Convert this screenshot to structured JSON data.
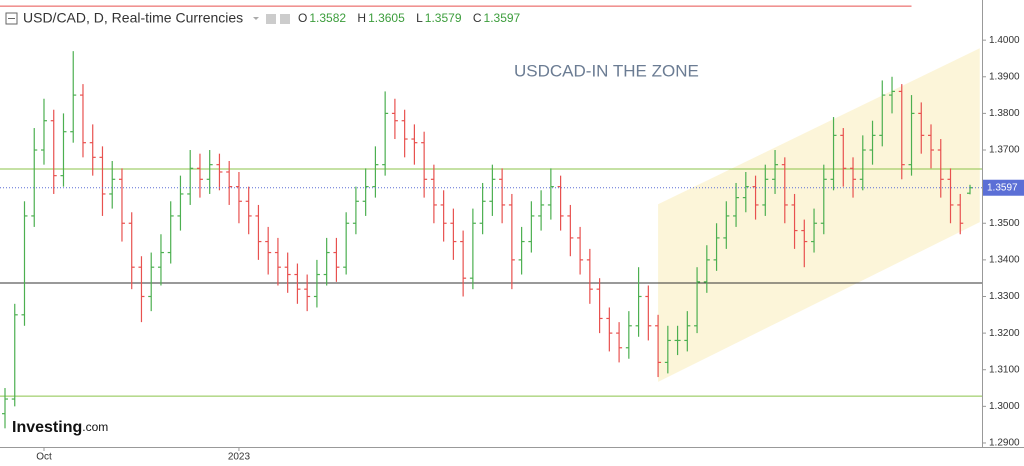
{
  "chart_data": {
    "type": "ohlc",
    "title": "USD/CAD, D, Real-time Currencies",
    "annotation": "USDCAD-IN THE ZONE",
    "ohlc_labels": [
      "O",
      "H",
      "L",
      "C"
    ],
    "logo": [
      "Investing",
      ".com"
    ],
    "open": [
      1.298,
      1.302,
      1.325,
      1.352,
      1.37,
      1.378,
      1.363,
      1.375,
      1.385,
      1.372,
      1.368,
      1.358,
      1.362,
      1.35,
      1.338,
      1.33,
      1.338,
      1.342,
      1.352,
      1.358,
      1.365,
      1.362,
      1.366,
      1.364,
      1.36,
      1.356,
      1.352,
      1.345,
      1.342,
      1.338,
      1.336,
      1.332,
      1.33,
      1.336,
      1.342,
      1.338,
      1.35,
      1.356,
      1.36,
      1.366,
      1.38,
      1.378,
      1.373,
      1.372,
      1.362,
      1.355,
      1.35,
      1.345,
      1.335,
      1.35,
      1.356,
      1.362,
      1.355,
      1.34,
      1.345,
      1.352,
      1.355,
      1.36,
      1.352,
      1.346,
      1.34,
      1.332,
      1.324,
      1.32,
      1.316,
      1.322,
      1.33,
      1.322,
      1.312,
      1.318,
      1.318,
      1.322,
      1.334,
      1.34,
      1.346,
      1.352,
      1.357,
      1.36,
      1.355,
      1.362,
      1.366,
      1.355,
      1.348,
      1.345,
      1.35,
      1.362,
      1.374,
      1.365,
      1.362,
      1.37,
      1.374,
      1.385,
      1.386,
      1.366,
      1.38,
      1.374,
      1.37,
      1.362,
      1.355,
      1.3582
    ],
    "high": [
      1.305,
      1.328,
      1.356,
      1.376,
      1.384,
      1.381,
      1.38,
      1.397,
      1.388,
      1.377,
      1.371,
      1.367,
      1.365,
      1.353,
      1.341,
      1.342,
      1.347,
      1.356,
      1.363,
      1.37,
      1.369,
      1.37,
      1.369,
      1.367,
      1.364,
      1.36,
      1.355,
      1.349,
      1.346,
      1.342,
      1.339,
      1.336,
      1.34,
      1.346,
      1.346,
      1.353,
      1.36,
      1.365,
      1.371,
      1.386,
      1.384,
      1.381,
      1.377,
      1.375,
      1.366,
      1.359,
      1.354,
      1.348,
      1.354,
      1.361,
      1.366,
      1.365,
      1.358,
      1.349,
      1.356,
      1.359,
      1.365,
      1.363,
      1.355,
      1.349,
      1.343,
      1.335,
      1.327,
      1.323,
      1.326,
      1.338,
      1.333,
      1.325,
      1.322,
      1.322,
      1.326,
      1.338,
      1.344,
      1.35,
      1.356,
      1.361,
      1.364,
      1.363,
      1.366,
      1.37,
      1.368,
      1.358,
      1.351,
      1.354,
      1.366,
      1.379,
      1.376,
      1.368,
      1.374,
      1.378,
      1.389,
      1.39,
      1.388,
      1.385,
      1.383,
      1.377,
      1.373,
      1.365,
      1.358,
      1.3605
    ],
    "low": [
      1.294,
      1.3,
      1.322,
      1.349,
      1.366,
      1.358,
      1.36,
      1.372,
      1.368,
      1.363,
      1.352,
      1.354,
      1.345,
      1.332,
      1.323,
      1.326,
      1.333,
      1.339,
      1.348,
      1.355,
      1.357,
      1.358,
      1.359,
      1.355,
      1.35,
      1.347,
      1.34,
      1.336,
      1.333,
      1.331,
      1.328,
      1.326,
      1.327,
      1.333,
      1.334,
      1.336,
      1.347,
      1.352,
      1.357,
      1.363,
      1.373,
      1.368,
      1.366,
      1.357,
      1.35,
      1.345,
      1.34,
      1.33,
      1.332,
      1.347,
      1.352,
      1.35,
      1.332,
      1.336,
      1.342,
      1.348,
      1.351,
      1.348,
      1.341,
      1.336,
      1.328,
      1.32,
      1.315,
      1.312,
      1.313,
      1.319,
      1.318,
      1.308,
      1.309,
      1.314,
      1.315,
      1.32,
      1.331,
      1.337,
      1.343,
      1.349,
      1.353,
      1.351,
      1.352,
      1.358,
      1.35,
      1.343,
      1.338,
      1.342,
      1.347,
      1.359,
      1.36,
      1.357,
      1.359,
      1.366,
      1.371,
      1.38,
      1.362,
      1.363,
      1.369,
      1.365,
      1.357,
      1.35,
      1.347,
      1.3579
    ],
    "close": [
      1.302,
      1.325,
      1.352,
      1.37,
      1.378,
      1.363,
      1.375,
      1.385,
      1.372,
      1.368,
      1.358,
      1.362,
      1.35,
      1.338,
      1.33,
      1.338,
      1.342,
      1.352,
      1.358,
      1.365,
      1.362,
      1.366,
      1.364,
      1.36,
      1.356,
      1.352,
      1.345,
      1.342,
      1.338,
      1.336,
      1.332,
      1.33,
      1.336,
      1.342,
      1.338,
      1.35,
      1.356,
      1.36,
      1.366,
      1.38,
      1.378,
      1.373,
      1.372,
      1.362,
      1.355,
      1.35,
      1.345,
      1.335,
      1.35,
      1.356,
      1.362,
      1.355,
      1.34,
      1.345,
      1.352,
      1.355,
      1.36,
      1.352,
      1.346,
      1.34,
      1.332,
      1.324,
      1.32,
      1.316,
      1.322,
      1.33,
      1.322,
      1.312,
      1.318,
      1.318,
      1.322,
      1.334,
      1.34,
      1.346,
      1.352,
      1.357,
      1.36,
      1.355,
      1.362,
      1.366,
      1.355,
      1.348,
      1.345,
      1.35,
      1.362,
      1.374,
      1.365,
      1.362,
      1.37,
      1.374,
      1.385,
      1.386,
      1.366,
      1.38,
      1.374,
      1.37,
      1.362,
      1.355,
      1.35,
      1.3597
    ],
    "categories": [
      null,
      null,
      null,
      null,
      "Oct",
      null,
      null,
      null,
      null,
      null,
      null,
      null,
      null,
      null,
      null,
      null,
      null,
      null,
      null,
      null,
      null,
      null,
      null,
      null,
      "2023",
      null,
      null,
      null,
      null,
      null,
      null,
      null,
      null,
      null,
      null,
      null,
      null,
      null,
      null,
      null,
      null,
      null,
      null,
      null,
      null,
      null,
      null,
      null,
      null,
      null,
      null,
      null,
      null,
      null,
      null,
      null,
      null,
      null,
      null,
      null,
      null,
      null,
      null,
      null,
      null,
      null,
      null,
      null,
      null,
      null,
      null,
      null,
      null,
      null,
      null,
      null,
      null,
      null,
      null,
      null,
      null,
      null,
      null,
      null,
      null,
      null,
      null,
      null,
      null,
      null,
      null,
      null,
      null,
      null,
      null,
      null,
      null,
      null,
      null,
      null
    ],
    "up_color": "#4caf50",
    "down_color": "#e8514f",
    "ylim": [
      1.2889,
      1.4096
    ],
    "yticks": [
      {
        "value": 1.29,
        "label": "1.2900"
      },
      {
        "value": 1.3,
        "label": "1.3000"
      },
      {
        "value": 1.31,
        "label": "1.3100"
      },
      {
        "value": 1.32,
        "label": "1.3200"
      },
      {
        "value": 1.33,
        "label": "1.3300"
      },
      {
        "value": 1.34,
        "label": "1.3400"
      },
      {
        "value": 1.35,
        "label": "1.3500"
      },
      {
        "value": 1.36,
        "label": "1.3600"
      },
      {
        "value": 1.37,
        "label": "1.3700"
      },
      {
        "value": 1.38,
        "label": "1.3800"
      },
      {
        "value": 1.39,
        "label": "1.3900"
      },
      {
        "value": 1.4,
        "label": "1.4000"
      }
    ],
    "grid": false,
    "last_price_line": true,
    "hlines": [
      {
        "value": 1.3648,
        "color": "#8bc34a"
      },
      {
        "value": 1.3337,
        "color": "#333333"
      },
      {
        "value": 1.3028,
        "color": "#8bc34a"
      },
      {
        "value": 1.4093,
        "color": "#e8514f",
        "to": 93
      }
    ],
    "channel": {
      "from": 67,
      "to": 100,
      "upper": [
        1.3552,
        1.3978
      ],
      "lower": [
        1.3067,
        1.3503
      ],
      "color": "#fbf3d0"
    }
  }
}
